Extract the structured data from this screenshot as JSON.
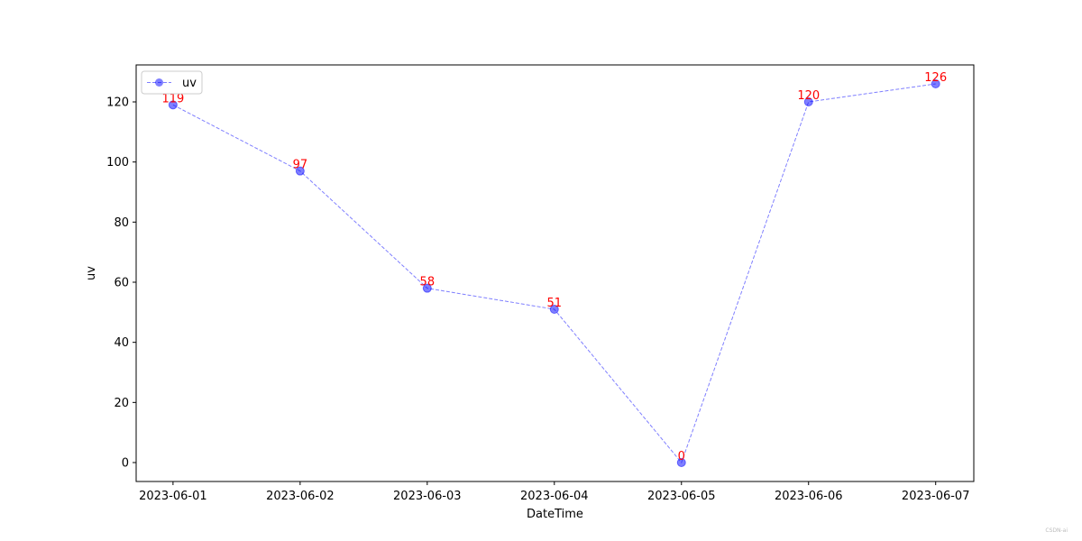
{
  "chart_data": {
    "type": "line",
    "title": "",
    "xlabel": "DateTime",
    "ylabel": "uv",
    "categories": [
      "2023-06-01",
      "2023-06-02",
      "2023-06-03",
      "2023-06-04",
      "2023-06-05",
      "2023-06-06",
      "2023-06-07"
    ],
    "series": [
      {
        "name": "uv",
        "values": [
          119,
          97,
          58,
          51,
          0,
          120,
          126
        ],
        "color": "#0000ff",
        "line_style": "dashed",
        "marker": "circle",
        "alpha": 0.5
      }
    ],
    "data_labels": [
      "119",
      "97",
      "58",
      "51",
      "0",
      "120",
      "126"
    ],
    "data_label_color": "#ff0000",
    "yticks": [
      0,
      20,
      40,
      60,
      80,
      100,
      120
    ],
    "ylim": [
      -6.3,
      132.3
    ],
    "grid": false,
    "legend": "upper-left"
  },
  "watermark": "CSDN-ai"
}
